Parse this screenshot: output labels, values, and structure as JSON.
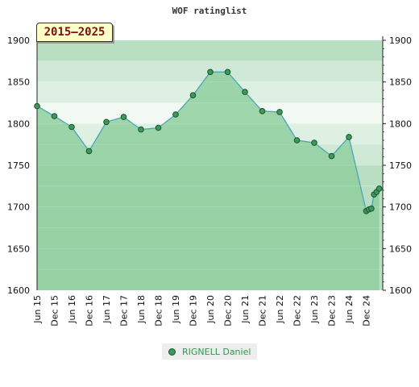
{
  "chart_data": {
    "type": "area",
    "title": "WOF ratinglist",
    "period_label": "2015–2025",
    "ylim": [
      1600,
      1900
    ],
    "yticks": [
      1600,
      1650,
      1700,
      1750,
      1800,
      1850,
      1900
    ],
    "xticks": [
      "Jun 15",
      "Dec 15",
      "Jun 16",
      "Dec 16",
      "Jun 17",
      "Dec 17",
      "Jun 18",
      "Dec 18",
      "Jun 19",
      "Dec 19",
      "Jun 20",
      "Dec 20",
      "Jun 21",
      "Dec 21",
      "Jun 22",
      "Dec 22",
      "Jun 23",
      "Dec 23",
      "Jun 24",
      "Dec 24"
    ],
    "series": [
      {
        "name": "RIGNELL Daniel",
        "points": [
          {
            "x": 0,
            "y": 1821
          },
          {
            "x": 1,
            "y": 1809
          },
          {
            "x": 2,
            "y": 1796
          },
          {
            "x": 3,
            "y": 1767
          },
          {
            "x": 4,
            "y": 1802
          },
          {
            "x": 5,
            "y": 1808
          },
          {
            "x": 6,
            "y": 1793
          },
          {
            "x": 7,
            "y": 1795
          },
          {
            "x": 8,
            "y": 1811
          },
          {
            "x": 9,
            "y": 1834
          },
          {
            "x": 10,
            "y": 1862
          },
          {
            "x": 11,
            "y": 1862
          },
          {
            "x": 12,
            "y": 1838
          },
          {
            "x": 13,
            "y": 1815
          },
          {
            "x": 14,
            "y": 1814
          },
          {
            "x": 15,
            "y": 1780
          },
          {
            "x": 16,
            "y": 1777
          },
          {
            "x": 17,
            "y": 1761
          },
          {
            "x": 18,
            "y": 1784
          },
          {
            "x": 19.0,
            "y": 1695
          },
          {
            "x": 19.15,
            "y": 1697
          },
          {
            "x": 19.3,
            "y": 1698
          },
          {
            "x": 19.45,
            "y": 1715
          },
          {
            "x": 19.6,
            "y": 1718
          },
          {
            "x": 19.75,
            "y": 1722
          }
        ]
      }
    ],
    "colors": {
      "area_fill": "#8fcf9f",
      "line": "#4aa6b8",
      "marker": "#3a9a5a",
      "marker_edge": "#1c4f2c"
    }
  }
}
